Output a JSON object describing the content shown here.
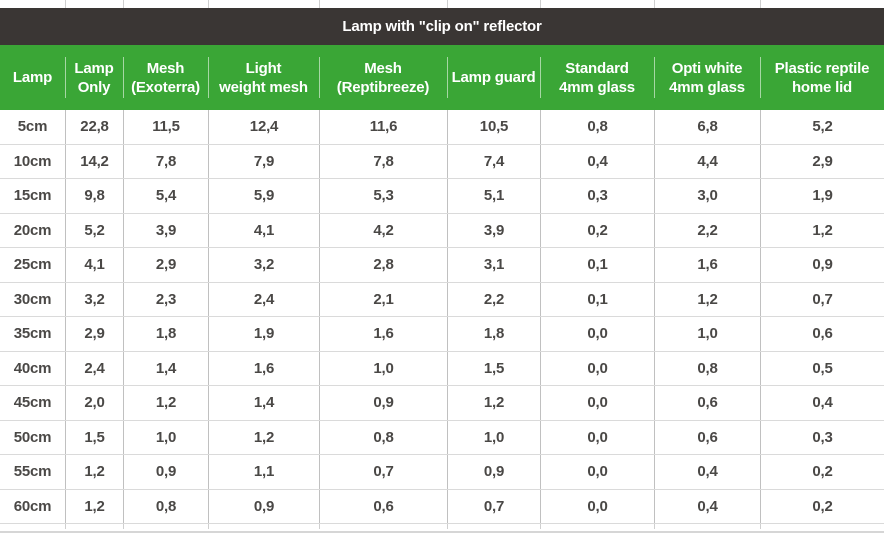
{
  "table": {
    "title": "Lamp with \"clip on\" reflector",
    "columns_display": [
      "Lamp",
      "Lamp\nOnly",
      "Mesh\n(Exoterra)",
      "Light\nweight mesh",
      "Mesh\n(Reptibreeze)",
      "Lamp guard",
      "Standard\n4mm glass",
      "Opti white\n4mm glass",
      "Plastic reptile\nhome lid"
    ]
  },
  "chart_data": {
    "type": "table",
    "title": "Lamp with \"clip on\" reflector",
    "columns": [
      "Lamp",
      "Lamp Only",
      "Mesh (Exoterra)",
      "Light weight mesh",
      "Mesh (Reptibreeze)",
      "Lamp guard",
      "Standard 4mm glass",
      "Opti white 4mm glass",
      "Plastic reptile home lid"
    ],
    "rows": [
      {
        "label": "5cm",
        "values": [
          "22,8",
          "11,5",
          "12,4",
          "11,6",
          "10,5",
          "0,8",
          "6,8",
          "5,2"
        ]
      },
      {
        "label": "10cm",
        "values": [
          "14,2",
          "7,8",
          "7,9",
          "7,8",
          "7,4",
          "0,4",
          "4,4",
          "2,9"
        ]
      },
      {
        "label": "15cm",
        "values": [
          "9,8",
          "5,4",
          "5,9",
          "5,3",
          "5,1",
          "0,3",
          "3,0",
          "1,9"
        ]
      },
      {
        "label": "20cm",
        "values": [
          "5,2",
          "3,9",
          "4,1",
          "4,2",
          "3,9",
          "0,2",
          "2,2",
          "1,2"
        ]
      },
      {
        "label": "25cm",
        "values": [
          "4,1",
          "2,9",
          "3,2",
          "2,8",
          "3,1",
          "0,1",
          "1,6",
          "0,9"
        ]
      },
      {
        "label": "30cm",
        "values": [
          "3,2",
          "2,3",
          "2,4",
          "2,1",
          "2,2",
          "0,1",
          "1,2",
          "0,7"
        ]
      },
      {
        "label": "35cm",
        "values": [
          "2,9",
          "1,8",
          "1,9",
          "1,6",
          "1,8",
          "0,0",
          "1,0",
          "0,6"
        ]
      },
      {
        "label": "40cm",
        "values": [
          "2,4",
          "1,4",
          "1,6",
          "1,0",
          "1,5",
          "0,0",
          "0,8",
          "0,5"
        ]
      },
      {
        "label": "45cm",
        "values": [
          "2,0",
          "1,2",
          "1,4",
          "0,9",
          "1,2",
          "0,0",
          "0,6",
          "0,4"
        ]
      },
      {
        "label": "50cm",
        "values": [
          "1,5",
          "1,0",
          "1,2",
          "0,8",
          "1,0",
          "0,0",
          "0,6",
          "0,3"
        ]
      },
      {
        "label": "55cm",
        "values": [
          "1,2",
          "0,9",
          "1,1",
          "0,7",
          "0,9",
          "0,0",
          "0,4",
          "0,2"
        ]
      },
      {
        "label": "60cm",
        "values": [
          "1,2",
          "0,8",
          "0,9",
          "0,6",
          "0,7",
          "0,0",
          "0,4",
          "0,2"
        ]
      }
    ]
  },
  "colors": {
    "title_bar": "#3a3634",
    "header_green": "#3aa636",
    "cell_text": "#4a4846"
  }
}
